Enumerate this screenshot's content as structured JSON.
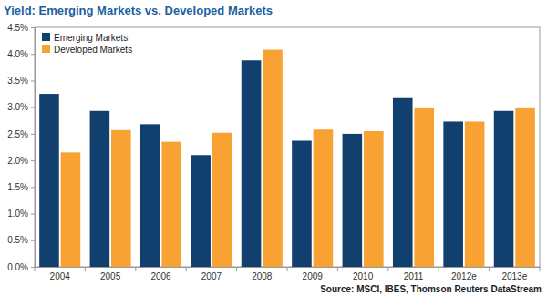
{
  "chart_data": {
    "type": "bar",
    "title": "Yield: Emerging Markets vs. Developed Markets",
    "source": "Source: MSCI, IBES, Thomson Reuters DataStream",
    "categories": [
      "2004",
      "2005",
      "2006",
      "2007",
      "2008",
      "2009",
      "2010",
      "2011",
      "2012e",
      "2013e"
    ],
    "series": [
      {
        "name": "Emerging Markets",
        "color": "#11406f",
        "values": [
          3.25,
          2.93,
          2.68,
          2.1,
          3.88,
          2.37,
          2.5,
          3.17,
          2.73,
          2.93
        ]
      },
      {
        "name": "Developed Markets",
        "color": "#f7a233",
        "values": [
          2.15,
          2.57,
          2.35,
          2.52,
          4.08,
          2.58,
          2.55,
          2.98,
          2.73,
          2.98
        ]
      }
    ],
    "ylim": [
      0,
      4.5
    ],
    "yticks": [
      {
        "value": 0,
        "label": "0.0%"
      },
      {
        "value": 0.5,
        "label": "0.5%"
      },
      {
        "value": 1,
        "label": "1.0%"
      },
      {
        "value": 1.5,
        "label": "1.5%"
      },
      {
        "value": 2,
        "label": "2.0%"
      },
      {
        "value": 2.5,
        "label": "2.5%"
      },
      {
        "value": 3,
        "label": "3.0%"
      },
      {
        "value": 3.5,
        "label": "3.5%"
      },
      {
        "value": 4,
        "label": "4.0%"
      },
      {
        "value": 4.5,
        "label": "4.5%"
      }
    ],
    "grid": false,
    "legend": "top-left"
  }
}
